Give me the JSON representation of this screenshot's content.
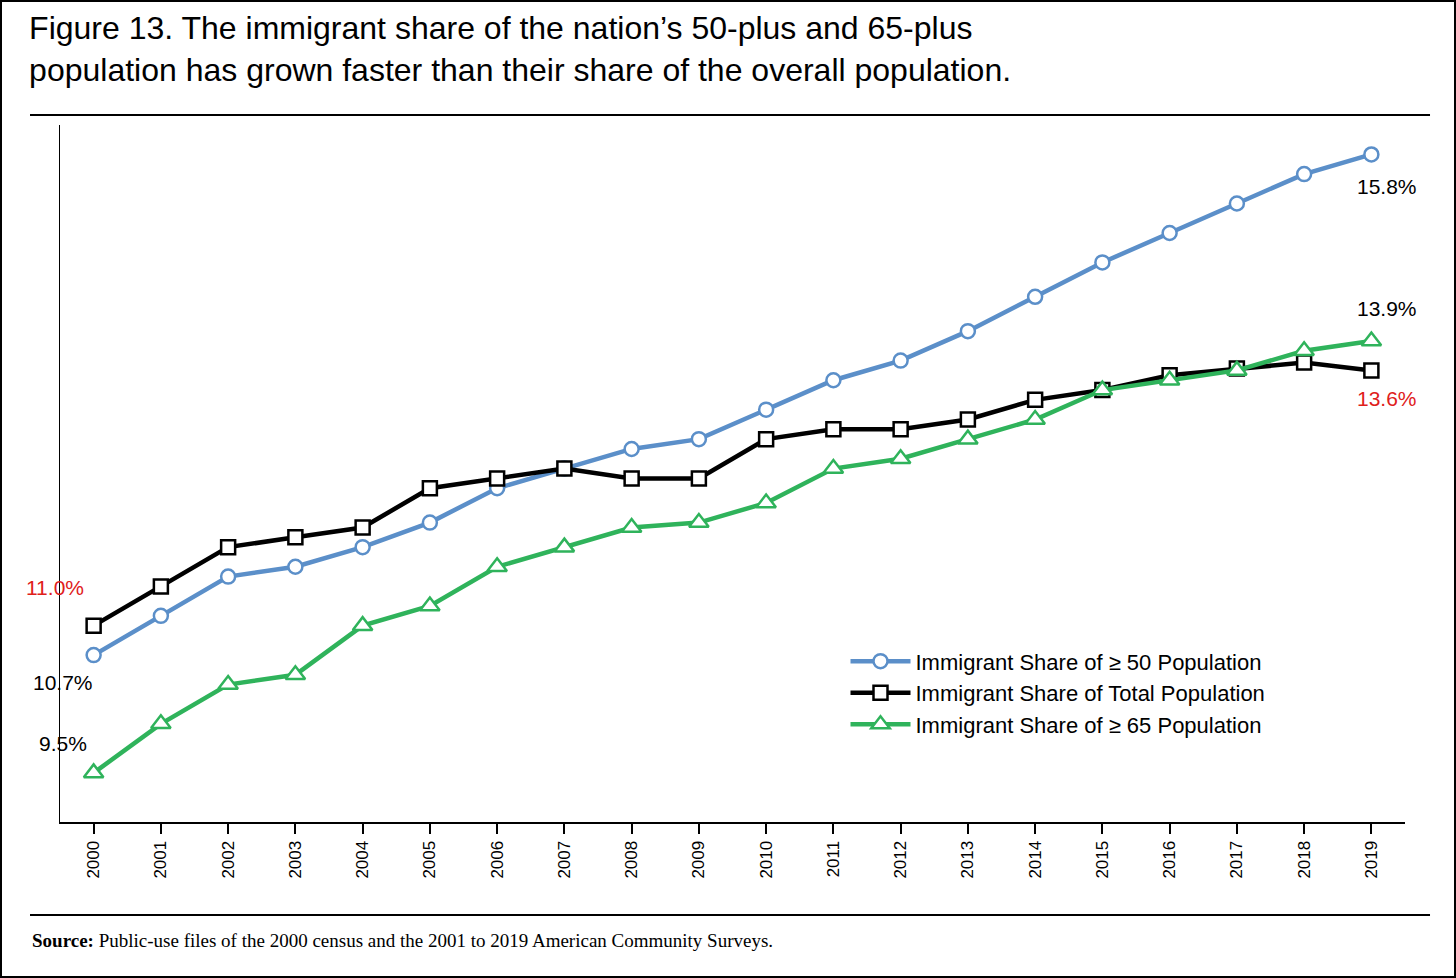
{
  "chart_data": {
    "type": "line",
    "title": "Figure 13. The immigrant share of the nation’s 50-plus and 65-plus\npopulation has grown faster than their share of the overall population.",
    "source": "Source: Public-use files of the 2000 census and the 2001 to 2019 American Community Surveys.",
    "x": [
      2000,
      2001,
      2002,
      2003,
      2004,
      2005,
      2006,
      2007,
      2008,
      2009,
      2010,
      2011,
      2012,
      2013,
      2014,
      2015,
      2016,
      2017,
      2018,
      2019
    ],
    "xlim": [
      1999.5,
      2019.5
    ],
    "xticks": [
      2000,
      2001,
      2002,
      2003,
      2004,
      2005,
      2006,
      2007,
      2008,
      2009,
      2010,
      2011,
      2012,
      2013,
      2014,
      2015,
      2016,
      2017,
      2018,
      2019
    ],
    "ylim": [
      9,
      16.1
    ],
    "yticks": [],
    "tick_labels": "x",
    "grid": false,
    "legend": "lower right",
    "series": [
      {
        "name": "Immigrant Share of ≥ 50 Population",
        "color": "#5b8fc9",
        "marker": "circle",
        "values": [
          10.7,
          11.1,
          11.5,
          11.6,
          11.8,
          12.05,
          12.4,
          12.6,
          12.8,
          12.9,
          13.2,
          13.5,
          13.7,
          14.0,
          14.35,
          14.7,
          15.0,
          15.3,
          15.6,
          15.8
        ]
      },
      {
        "name": "Immigrant Share of Total Population",
        "color": "#000000",
        "marker": "square",
        "values": [
          11.0,
          11.4,
          11.8,
          11.9,
          12.0,
          12.4,
          12.5,
          12.6,
          12.5,
          12.5,
          12.9,
          13.0,
          13.0,
          13.1,
          13.3,
          13.4,
          13.55,
          13.62,
          13.68,
          13.6
        ]
      },
      {
        "name": "Immigrant Share of ≥ 65 Population",
        "color": "#2fb35b",
        "marker": "triangle-up",
        "values": [
          9.5,
          10.0,
          10.4,
          10.5,
          11.0,
          11.2,
          11.6,
          11.8,
          12.0,
          12.05,
          12.25,
          12.6,
          12.7,
          12.9,
          13.1,
          13.4,
          13.5,
          13.6,
          13.8,
          13.9
        ]
      }
    ],
    "annotations": [
      {
        "text": "11.0%",
        "x": 2000,
        "y": 11.0,
        "color": "#e0201b"
      },
      {
        "text": "10.7%",
        "x": 2000,
        "y": 10.7,
        "color": "#000000"
      },
      {
        "text": "9.5%",
        "x": 2000,
        "y": 9.5,
        "color": "#000000"
      },
      {
        "text": "15.8%",
        "x": 2019,
        "y": 15.8,
        "color": "#000000"
      },
      {
        "text": "13.9%",
        "x": 2019,
        "y": 13.9,
        "color": "#000000"
      },
      {
        "text": "13.6%",
        "x": 2019,
        "y": 13.6,
        "color": "#e0201b"
      }
    ]
  }
}
